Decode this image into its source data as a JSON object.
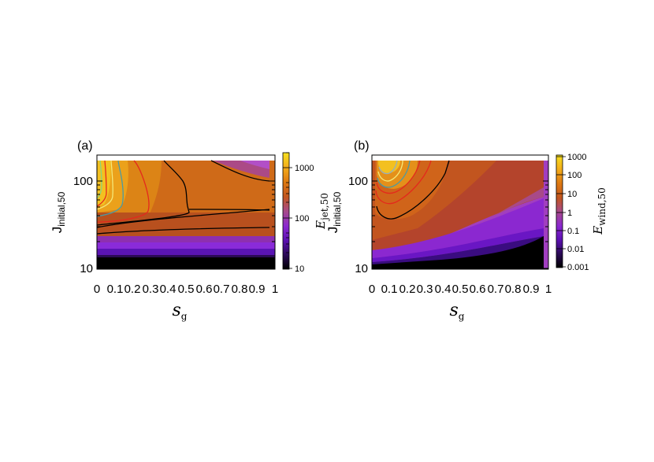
{
  "chart_data": [
    {
      "type": "heatmap",
      "panel_label": "(a)",
      "x_tick_labels": [
        "0",
        "0.1",
        "0.2",
        "0.3",
        "0.4",
        "0.5",
        "0.6",
        "0.7",
        "0.8",
        "0.9",
        "1"
      ],
      "x_ticks": [
        0,
        0.1,
        0.2,
        0.3,
        0.4,
        0.5,
        0.6,
        0.7,
        0.8,
        0.9,
        1
      ],
      "xlim": [
        0,
        1
      ],
      "xlabel": "s",
      "xlabel_sub": "g",
      "y_tick_labels": [
        "10",
        "100"
      ],
      "y_ticks": [
        10,
        100
      ],
      "ylim": [
        10,
        180
      ],
      "y_scale": "log",
      "ylabel": "J",
      "ylabel_sub": "initial,50",
      "colorbar": {
        "label": "E",
        "label_sub": "jet,50",
        "scale": "log",
        "range": [
          10,
          2000
        ],
        "tick_labels": [
          "10",
          "100",
          "1000"
        ],
        "ticks": [
          10,
          100,
          1000
        ],
        "colormap": [
          "#000000",
          "#2a0a55",
          "#5d11b4",
          "#8b28d0",
          "#a84a88",
          "#c2551f",
          "#de7a12",
          "#f3ab1a",
          "#f6e020"
        ]
      },
      "contour_colors": [
        "#000000",
        "#e4291d",
        "#4a9aa4",
        "#f4e878",
        "#8cd47a"
      ],
      "grid": false
    },
    {
      "type": "heatmap",
      "panel_label": "(b)",
      "x_tick_labels": [
        "0",
        "0.1",
        "0.2",
        "0.3",
        "0.4",
        "0.5",
        "0.6",
        "0.7",
        "0.8",
        "0.9",
        "1"
      ],
      "x_ticks": [
        0,
        0.1,
        0.2,
        0.3,
        0.4,
        0.5,
        0.6,
        0.7,
        0.8,
        0.9,
        1
      ],
      "xlim": [
        0,
        1
      ],
      "xlabel": "s",
      "xlabel_sub": "g",
      "y_tick_labels": [
        "10",
        "100"
      ],
      "y_ticks": [
        10,
        100
      ],
      "ylim": [
        10,
        180
      ],
      "y_scale": "log",
      "ylabel": "J",
      "ylabel_sub": "initial,50",
      "colorbar": {
        "label": "E",
        "label_sub": "wind,50",
        "scale": "log",
        "range": [
          0.001,
          1500
        ],
        "tick_labels": [
          "0.001",
          "0.01",
          "0.1",
          "1",
          "10",
          "100",
          "1000"
        ],
        "ticks": [
          0.001,
          0.01,
          0.1,
          1,
          10,
          100,
          1000
        ],
        "colormap": [
          "#000000",
          "#2a0a55",
          "#5d11b4",
          "#8b28d0",
          "#a84a88",
          "#c2551f",
          "#de7a12",
          "#f3ab1a",
          "#f6e020"
        ]
      },
      "contour_colors": [
        "#000000",
        "#e4291d",
        "#4a9aa4",
        "#f4e878",
        "#8cd47a"
      ],
      "grid": false
    }
  ]
}
